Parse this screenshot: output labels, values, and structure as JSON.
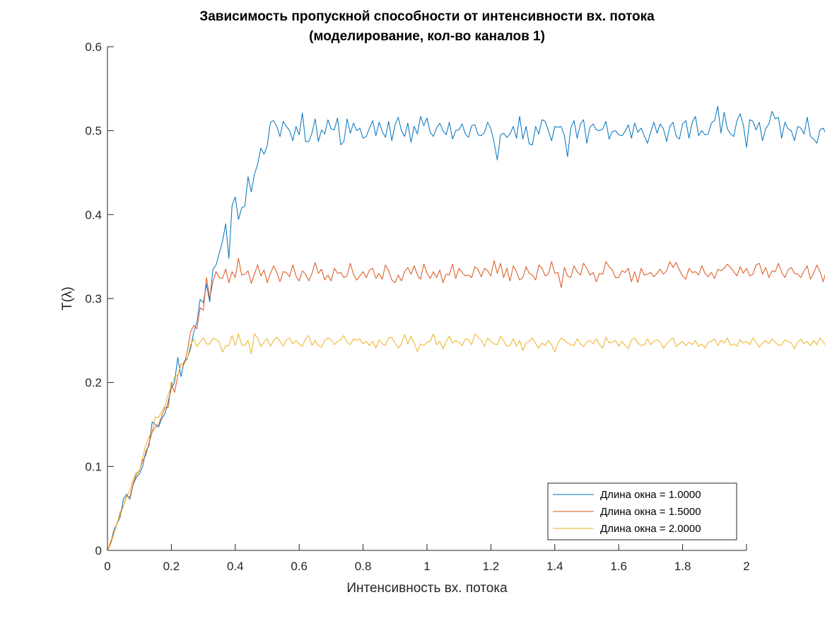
{
  "chart_data": {
    "type": "line",
    "title": "Зависимость пропускной способности от интенсивности вх. потока",
    "subtitle": "(моделирование, кол-во каналов 1)",
    "xlabel": "Интенсивность вх. потока",
    "ylabel": "T(λ)",
    "xlim": [
      0,
      2
    ],
    "ylim": [
      0,
      0.6
    ],
    "x_ticks": [
      "0",
      "0.2",
      "0.4",
      "0.6",
      "0.8",
      "1",
      "1.2",
      "1.4",
      "1.6",
      "1.8",
      "2"
    ],
    "y_ticks": [
      "0",
      "0.1",
      "0.2",
      "0.3",
      "0.4",
      "0.5",
      "0.6"
    ],
    "legend_position": "bottom-right",
    "grid": false,
    "x_step": 0.01,
    "series": [
      {
        "name": "Длина окна = 1.0000",
        "color": "#0072BD",
        "values": [
          0.0,
          0.009,
          0.024,
          0.032,
          0.04,
          0.061,
          0.067,
          0.061,
          0.078,
          0.087,
          0.091,
          0.1,
          0.118,
          0.125,
          0.153,
          0.15,
          0.147,
          0.157,
          0.163,
          0.177,
          0.193,
          0.2,
          0.23,
          0.207,
          0.225,
          0.229,
          0.24,
          0.26,
          0.272,
          0.299,
          0.295,
          0.317,
          0.296,
          0.335,
          0.34,
          0.354,
          0.368,
          0.389,
          0.348,
          0.411,
          0.421,
          0.394,
          0.408,
          0.41,
          0.445,
          0.427,
          0.448,
          0.46,
          0.479,
          0.472,
          0.482,
          0.51,
          0.512,
          0.505,
          0.493,
          0.511,
          0.505,
          0.5,
          0.488,
          0.505,
          0.495,
          0.521,
          0.487,
          0.487,
          0.497,
          0.514,
          0.487,
          0.501,
          0.496,
          0.513,
          0.502,
          0.501,
          0.515,
          0.483,
          0.487,
          0.514,
          0.497,
          0.509,
          0.5,
          0.503,
          0.491,
          0.493,
          0.503,
          0.512,
          0.494,
          0.51,
          0.499,
          0.492,
          0.511,
          0.488,
          0.507,
          0.516,
          0.5,
          0.493,
          0.509,
          0.486,
          0.505,
          0.496,
          0.517,
          0.506,
          0.515,
          0.498,
          0.493,
          0.503,
          0.509,
          0.5,
          0.495,
          0.51,
          0.49,
          0.5,
          0.501,
          0.508,
          0.496,
          0.492,
          0.506,
          0.507,
          0.495,
          0.494,
          0.498,
          0.51,
          0.502,
          0.486,
          0.465,
          0.495,
          0.497,
          0.492,
          0.496,
          0.505,
          0.491,
          0.517,
          0.49,
          0.505,
          0.484,
          0.483,
          0.505,
          0.496,
          0.513,
          0.511,
          0.5,
          0.488,
          0.505,
          0.504,
          0.505,
          0.494,
          0.469,
          0.503,
          0.512,
          0.491,
          0.508,
          0.513,
          0.485,
          0.504,
          0.508,
          0.501,
          0.5,
          0.502,
          0.511,
          0.49,
          0.499,
          0.5,
          0.495,
          0.494,
          0.499,
          0.507,
          0.491,
          0.509,
          0.498,
          0.503,
          0.494,
          0.485,
          0.498,
          0.51,
          0.497,
          0.508,
          0.502,
          0.487,
          0.505,
          0.51,
          0.493,
          0.49,
          0.508,
          0.512,
          0.491,
          0.51,
          0.517,
          0.494,
          0.5,
          0.495,
          0.496,
          0.509,
          0.512,
          0.529,
          0.497,
          0.522,
          0.502,
          0.496,
          0.493,
          0.512,
          0.52,
          0.507,
          0.48,
          0.513,
          0.511,
          0.501,
          0.51,
          0.488,
          0.502,
          0.508,
          0.523,
          0.514,
          0.516,
          0.491,
          0.51,
          0.502,
          0.5,
          0.488,
          0.505,
          0.503,
          0.496,
          0.516,
          0.493,
          0.49,
          0.485,
          0.501,
          0.503,
          0.495,
          0.502,
          0.491,
          0.486,
          0.498,
          0.513,
          0.514,
          0.496,
          0.503,
          0.487,
          0.51,
          0.498,
          0.486,
          0.51,
          0.504,
          0.494,
          0.496,
          0.49,
          0.484,
          0.498,
          0.512,
          0.5,
          0.492,
          0.507,
          0.519,
          0.506,
          0.507,
          0.498,
          0.518,
          0.504,
          0.488,
          0.49,
          0.505,
          0.497,
          0.5,
          0.493,
          0.51,
          0.488,
          0.501,
          0.5,
          0.497,
          0.476,
          0.513,
          0.494,
          0.505,
          0.501,
          0.509,
          0.509,
          0.494,
          0.495,
          0.501,
          0.494,
          0.485,
          0.489,
          0.51,
          0.505,
          0.506,
          0.484,
          0.499,
          0.491,
          0.483,
          0.496,
          0.491,
          0.495
        ]
      },
      {
        "name": "Длина окна = 1.5000",
        "color": "#D95319",
        "values": [
          0.0,
          0.008,
          0.02,
          0.032,
          0.045,
          0.053,
          0.065,
          0.063,
          0.079,
          0.09,
          0.095,
          0.107,
          0.113,
          0.128,
          0.141,
          0.147,
          0.15,
          0.16,
          0.17,
          0.17,
          0.2,
          0.188,
          0.208,
          0.222,
          0.222,
          0.237,
          0.26,
          0.268,
          0.264,
          0.289,
          0.286,
          0.325,
          0.3,
          0.32,
          0.332,
          0.325,
          0.324,
          0.335,
          0.319,
          0.332,
          0.325,
          0.348,
          0.328,
          0.329,
          0.333,
          0.318,
          0.329,
          0.34,
          0.327,
          0.334,
          0.319,
          0.33,
          0.339,
          0.331,
          0.32,
          0.332,
          0.331,
          0.326,
          0.34,
          0.327,
          0.321,
          0.333,
          0.329,
          0.321,
          0.33,
          0.343,
          0.33,
          0.335,
          0.322,
          0.328,
          0.321,
          0.336,
          0.33,
          0.331,
          0.325,
          0.327,
          0.342,
          0.329,
          0.322,
          0.327,
          0.332,
          0.325,
          0.334,
          0.336,
          0.324,
          0.33,
          0.323,
          0.34,
          0.333,
          0.322,
          0.319,
          0.328,
          0.321,
          0.332,
          0.337,
          0.329,
          0.339,
          0.328,
          0.323,
          0.341,
          0.33,
          0.324,
          0.332,
          0.325,
          0.334,
          0.319,
          0.329,
          0.328,
          0.341,
          0.324,
          0.336,
          0.331,
          0.327,
          0.328,
          0.325,
          0.338,
          0.334,
          0.326,
          0.336,
          0.333,
          0.327,
          0.345,
          0.33,
          0.342,
          0.325,
          0.336,
          0.321,
          0.339,
          0.332,
          0.322,
          0.325,
          0.338,
          0.33,
          0.328,
          0.322,
          0.34,
          0.336,
          0.327,
          0.329,
          0.344,
          0.33,
          0.331,
          0.313,
          0.337,
          0.327,
          0.325,
          0.339,
          0.332,
          0.328,
          0.342,
          0.336,
          0.328,
          0.331,
          0.32,
          0.33,
          0.329,
          0.344,
          0.338,
          0.334,
          0.325,
          0.325,
          0.333,
          0.331,
          0.336,
          0.32,
          0.332,
          0.319,
          0.336,
          0.328,
          0.329,
          0.331,
          0.326,
          0.33,
          0.335,
          0.329,
          0.333,
          0.344,
          0.337,
          0.343,
          0.334,
          0.327,
          0.323,
          0.336,
          0.331,
          0.332,
          0.328,
          0.339,
          0.33,
          0.326,
          0.331,
          0.324,
          0.335,
          0.333,
          0.336,
          0.341,
          0.337,
          0.332,
          0.327,
          0.338,
          0.33,
          0.336,
          0.327,
          0.329,
          0.34,
          0.342,
          0.329,
          0.337,
          0.325,
          0.333,
          0.332,
          0.342,
          0.331,
          0.325,
          0.334,
          0.337,
          0.33,
          0.329,
          0.325,
          0.333,
          0.339,
          0.323,
          0.33,
          0.34,
          0.332,
          0.32,
          0.334,
          0.336,
          0.329,
          0.334,
          0.329,
          0.321,
          0.328,
          0.328,
          0.331,
          0.338,
          0.34,
          0.327,
          0.322,
          0.329,
          0.337,
          0.332,
          0.345,
          0.334,
          0.33,
          0.328,
          0.333,
          0.334,
          0.337,
          0.329,
          0.34,
          0.322,
          0.327,
          0.337,
          0.332,
          0.324,
          0.334,
          0.327,
          0.328,
          0.33,
          0.339,
          0.334,
          0.328,
          0.326,
          0.335,
          0.34,
          0.333,
          0.332,
          0.329,
          0.329,
          0.325,
          0.333,
          0.328,
          0.327,
          0.33,
          0.321,
          0.327,
          0.336,
          0.332,
          0.331,
          0.33,
          0.326,
          0.334,
          0.34,
          0.331,
          0.32,
          0.334
        ]
      },
      {
        "name": "Длина окна = 2.0000",
        "color": "#EDB120",
        "values": [
          0.0,
          0.011,
          0.02,
          0.033,
          0.042,
          0.053,
          0.064,
          0.071,
          0.084,
          0.093,
          0.094,
          0.111,
          0.126,
          0.135,
          0.142,
          0.159,
          0.158,
          0.166,
          0.172,
          0.186,
          0.195,
          0.207,
          0.209,
          0.222,
          0.223,
          0.228,
          0.245,
          0.252,
          0.243,
          0.248,
          0.253,
          0.246,
          0.246,
          0.253,
          0.251,
          0.248,
          0.236,
          0.244,
          0.244,
          0.256,
          0.244,
          0.258,
          0.245,
          0.244,
          0.25,
          0.234,
          0.258,
          0.253,
          0.243,
          0.248,
          0.252,
          0.243,
          0.25,
          0.254,
          0.249,
          0.243,
          0.251,
          0.253,
          0.246,
          0.25,
          0.246,
          0.243,
          0.252,
          0.256,
          0.244,
          0.25,
          0.244,
          0.242,
          0.25,
          0.253,
          0.251,
          0.245,
          0.249,
          0.251,
          0.256,
          0.248,
          0.245,
          0.252,
          0.25,
          0.252,
          0.246,
          0.249,
          0.244,
          0.249,
          0.241,
          0.251,
          0.246,
          0.244,
          0.253,
          0.254,
          0.247,
          0.241,
          0.246,
          0.257,
          0.246,
          0.255,
          0.247,
          0.237,
          0.246,
          0.244,
          0.248,
          0.249,
          0.258,
          0.245,
          0.249,
          0.24,
          0.249,
          0.255,
          0.247,
          0.25,
          0.248,
          0.244,
          0.252,
          0.251,
          0.245,
          0.258,
          0.254,
          0.25,
          0.243,
          0.253,
          0.249,
          0.246,
          0.245,
          0.255,
          0.25,
          0.243,
          0.244,
          0.252,
          0.243,
          0.25,
          0.238,
          0.247,
          0.249,
          0.253,
          0.246,
          0.241,
          0.247,
          0.244,
          0.25,
          0.245,
          0.236,
          0.247,
          0.253,
          0.25,
          0.247,
          0.245,
          0.244,
          0.252,
          0.246,
          0.243,
          0.248,
          0.25,
          0.246,
          0.252,
          0.245,
          0.241,
          0.254,
          0.247,
          0.248,
          0.25,
          0.243,
          0.249,
          0.244,
          0.24,
          0.251,
          0.253,
          0.247,
          0.244,
          0.245,
          0.252,
          0.245,
          0.249,
          0.251,
          0.248,
          0.241,
          0.246,
          0.25,
          0.253,
          0.243,
          0.246,
          0.249,
          0.244,
          0.248,
          0.245,
          0.25,
          0.243,
          0.246,
          0.241,
          0.248,
          0.249,
          0.252,
          0.244,
          0.25,
          0.247,
          0.253,
          0.244,
          0.246,
          0.243,
          0.251,
          0.247,
          0.249,
          0.245,
          0.253,
          0.248,
          0.242,
          0.247,
          0.25,
          0.246,
          0.252,
          0.248,
          0.244,
          0.245,
          0.251,
          0.249,
          0.247,
          0.24,
          0.248,
          0.252,
          0.246,
          0.249,
          0.244,
          0.25,
          0.245,
          0.253,
          0.248,
          0.243,
          0.25,
          0.246,
          0.245,
          0.249,
          0.244,
          0.252,
          0.247,
          0.245,
          0.25,
          0.246,
          0.248,
          0.253,
          0.244,
          0.249,
          0.245,
          0.247,
          0.25,
          0.243,
          0.248,
          0.252,
          0.245,
          0.246,
          0.249,
          0.244,
          0.25,
          0.247,
          0.248,
          0.245,
          0.251,
          0.246,
          0.244,
          0.249,
          0.253,
          0.247,
          0.243,
          0.25,
          0.246,
          0.248,
          0.244,
          0.245,
          0.249,
          0.243,
          0.247,
          0.252,
          0.244,
          0.246,
          0.25,
          0.245,
          0.247,
          0.249,
          0.243,
          0.248,
          0.244,
          0.246,
          0.25,
          0.245,
          0.249,
          0.247,
          0.244,
          0.248,
          0.246,
          0.25,
          0.245,
          0.247,
          0.243,
          0.249,
          0.246,
          0.24
        ]
      }
    ]
  }
}
